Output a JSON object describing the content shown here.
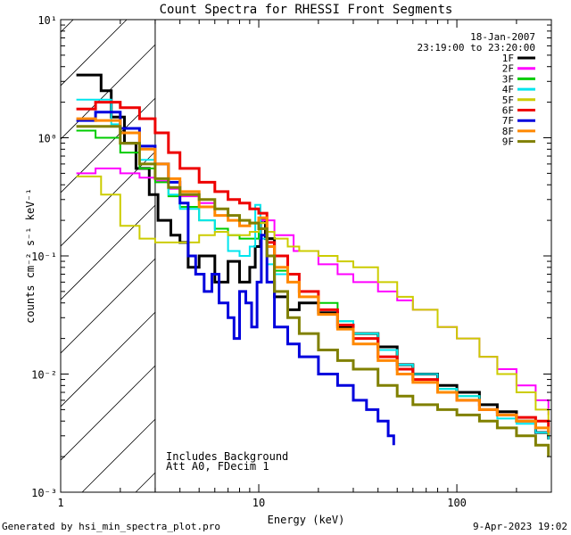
{
  "chart_data": {
    "type": "line",
    "title": "Count Spectra for RHESSI Front Segments",
    "xlabel": "Energy (keV)",
    "ylabel": "counts cm⁻² s⁻¹ keV⁻¹",
    "xscale": "log",
    "yscale": "log",
    "xlim": [
      1,
      300
    ],
    "ylim": [
      0.001,
      10
    ],
    "x_ticks": [
      {
        "value": 1,
        "label": "1"
      },
      {
        "value": 10,
        "label": "10"
      },
      {
        "value": 100,
        "label": "100"
      }
    ],
    "y_ticks": [
      {
        "value": 0.001,
        "label": "10⁻³"
      },
      {
        "value": 0.01,
        "label": "10⁻²"
      },
      {
        "value": 0.1,
        "label": "10⁻¹"
      },
      {
        "value": 1,
        "label": "10⁰"
      },
      {
        "value": 10,
        "label": "10¹"
      }
    ],
    "grid": false,
    "legend_position": "top-right",
    "date": "18-Jan-2007",
    "time_range": "23:19:00 to 23:20:00",
    "hatched_region_max_keV": 3,
    "annotations": [
      "Includes Background",
      "Att A0, FDecim 1"
    ],
    "series": [
      {
        "name": "1F",
        "color": "#000000",
        "width": 3,
        "x": [
          1.2,
          1.4,
          1.6,
          1.8,
          2.1,
          2.4,
          2.8,
          3.1,
          3.6,
          4.0,
          4.4,
          5.0,
          6.0,
          7.0,
          8.0,
          9.0,
          9.6,
          10.2,
          10.8,
          12,
          14,
          16,
          20,
          25,
          30,
          40,
          50,
          60,
          80,
          100,
          130,
          160,
          200,
          250,
          290
        ],
        "y": [
          3.4,
          3.4,
          2.5,
          1.5,
          0.9,
          0.55,
          0.33,
          0.2,
          0.15,
          0.13,
          0.08,
          0.1,
          0.06,
          0.09,
          0.06,
          0.08,
          0.12,
          0.2,
          0.14,
          0.045,
          0.035,
          0.04,
          0.033,
          0.025,
          0.022,
          0.017,
          0.012,
          0.01,
          0.008,
          0.007,
          0.0055,
          0.0048,
          0.004,
          0.0032,
          0.0028
        ]
      },
      {
        "name": "2F",
        "color": "#ff00ff",
        "width": 2,
        "x": [
          1.2,
          1.5,
          2.0,
          2.5,
          3.0,
          3.5,
          4.0,
          5.0,
          6.0,
          7.0,
          8.0,
          9.0,
          10.0,
          12,
          15,
          20,
          25,
          30,
          40,
          50,
          60,
          80,
          100,
          130,
          160,
          200,
          250,
          290
        ],
        "y": [
          0.5,
          0.55,
          0.5,
          0.46,
          0.43,
          0.37,
          0.32,
          0.28,
          0.22,
          0.2,
          0.2,
          0.19,
          0.2,
          0.15,
          0.11,
          0.085,
          0.07,
          0.06,
          0.05,
          0.042,
          0.035,
          0.025,
          0.02,
          0.014,
          0.011,
          0.008,
          0.006,
          0.0045
        ]
      },
      {
        "name": "3F",
        "color": "#00cc00",
        "width": 2,
        "x": [
          1.2,
          1.5,
          2.0,
          2.5,
          3.0,
          3.5,
          4.0,
          5.0,
          6.0,
          7.0,
          8.0,
          9.0,
          10.0,
          11,
          12,
          14,
          16,
          20,
          25,
          30,
          40,
          50,
          60,
          80,
          100,
          130,
          160,
          200,
          250,
          290
        ],
        "y": [
          1.15,
          1.0,
          0.75,
          0.55,
          0.42,
          0.32,
          0.26,
          0.2,
          0.17,
          0.15,
          0.14,
          0.14,
          0.19,
          0.1,
          0.075,
          0.06,
          0.05,
          0.04,
          0.028,
          0.022,
          0.016,
          0.012,
          0.01,
          0.0075,
          0.0065,
          0.005,
          0.0045,
          0.004,
          0.0035,
          0.003
        ]
      },
      {
        "name": "4F",
        "color": "#00e5ee",
        "width": 2,
        "x": [
          1.2,
          1.5,
          1.8,
          2.0,
          2.5,
          3.0,
          3.5,
          4.0,
          5.0,
          6.0,
          7.0,
          8.0,
          9.0,
          9.6,
          10.2,
          11,
          12,
          14,
          16,
          20,
          25,
          30,
          40,
          50,
          60,
          80,
          100,
          130,
          160,
          200,
          250,
          290
        ],
        "y": [
          2.1,
          2.1,
          1.3,
          0.9,
          0.65,
          0.45,
          0.33,
          0.25,
          0.2,
          0.16,
          0.11,
          0.1,
          0.12,
          0.27,
          0.14,
          0.085,
          0.07,
          0.06,
          0.045,
          0.035,
          0.028,
          0.022,
          0.016,
          0.012,
          0.01,
          0.0075,
          0.0065,
          0.005,
          0.0042,
          0.0038,
          0.0032,
          0.0028
        ]
      },
      {
        "name": "5F",
        "color": "#cccc00",
        "width": 2,
        "x": [
          1.2,
          1.35,
          1.6,
          2.0,
          2.5,
          3.0,
          3.5,
          4.0,
          5.0,
          6.0,
          7.0,
          8.0,
          9.0,
          10.0,
          11,
          12,
          14,
          16,
          20,
          25,
          30,
          40,
          50,
          60,
          80,
          100,
          130,
          160,
          200,
          250,
          290
        ],
        "y": [
          0.47,
          0.47,
          0.33,
          0.18,
          0.14,
          0.13,
          0.13,
          0.13,
          0.15,
          0.16,
          0.15,
          0.15,
          0.16,
          0.19,
          0.16,
          0.14,
          0.12,
          0.11,
          0.1,
          0.09,
          0.08,
          0.06,
          0.045,
          0.035,
          0.025,
          0.02,
          0.014,
          0.01,
          0.007,
          0.005,
          0.003
        ]
      },
      {
        "name": "6F",
        "color": "#ee0000",
        "width": 3,
        "x": [
          1.2,
          1.5,
          2.0,
          2.5,
          3.0,
          3.5,
          4.0,
          5.0,
          6.0,
          7.0,
          8.0,
          9.0,
          10.0,
          11,
          12,
          14,
          16,
          20,
          25,
          30,
          40,
          50,
          60,
          80,
          100,
          130,
          160,
          200,
          250,
          290
        ],
        "y": [
          1.75,
          2.0,
          1.8,
          1.45,
          1.1,
          0.75,
          0.55,
          0.42,
          0.35,
          0.3,
          0.28,
          0.25,
          0.23,
          0.13,
          0.1,
          0.07,
          0.05,
          0.035,
          0.026,
          0.02,
          0.014,
          0.011,
          0.009,
          0.007,
          0.006,
          0.005,
          0.0045,
          0.0043,
          0.004,
          0.0032
        ]
      },
      {
        "name": "7F",
        "color": "#0000dd",
        "width": 3,
        "x": [
          1.2,
          1.5,
          2.0,
          2.5,
          3.0,
          3.5,
          4.0,
          4.4,
          4.8,
          5.3,
          5.8,
          6.3,
          7.0,
          7.5,
          8.0,
          8.6,
          9.2,
          9.8,
          10.3,
          11,
          12,
          14,
          16,
          20,
          25,
          30,
          35,
          40,
          45,
          48
        ],
        "y": [
          1.4,
          1.65,
          1.2,
          0.85,
          0.6,
          0.42,
          0.28,
          0.1,
          0.07,
          0.05,
          0.07,
          0.04,
          0.03,
          0.02,
          0.05,
          0.04,
          0.025,
          0.06,
          0.15,
          0.06,
          0.025,
          0.018,
          0.014,
          0.01,
          0.008,
          0.006,
          0.005,
          0.004,
          0.003,
          0.0025
        ]
      },
      {
        "name": "8F",
        "color": "#ff8800",
        "width": 3,
        "x": [
          1.2,
          1.5,
          2.0,
          2.5,
          3.0,
          3.5,
          4.0,
          5.0,
          6.0,
          7.0,
          8.0,
          9.0,
          10.0,
          11,
          12,
          14,
          16,
          20,
          25,
          30,
          40,
          50,
          60,
          80,
          100,
          130,
          160,
          200,
          250,
          290
        ],
        "y": [
          1.45,
          1.4,
          1.1,
          0.8,
          0.6,
          0.45,
          0.35,
          0.26,
          0.22,
          0.2,
          0.18,
          0.19,
          0.21,
          0.12,
          0.08,
          0.06,
          0.045,
          0.032,
          0.024,
          0.018,
          0.013,
          0.01,
          0.0085,
          0.007,
          0.006,
          0.005,
          0.0045,
          0.004,
          0.0035,
          0.0032
        ]
      },
      {
        "name": "9F",
        "color": "#808000",
        "width": 3,
        "x": [
          1.2,
          1.5,
          2.0,
          2.5,
          3.0,
          3.5,
          4.0,
          5.0,
          6.0,
          7.0,
          8.0,
          9.0,
          10.0,
          11,
          12,
          14,
          16,
          20,
          25,
          30,
          40,
          50,
          60,
          80,
          100,
          130,
          160,
          200,
          250,
          290
        ],
        "y": [
          1.25,
          1.25,
          0.9,
          0.6,
          0.45,
          0.38,
          0.33,
          0.3,
          0.25,
          0.22,
          0.2,
          0.19,
          0.17,
          0.1,
          0.05,
          0.03,
          0.022,
          0.016,
          0.013,
          0.011,
          0.008,
          0.0065,
          0.0055,
          0.005,
          0.0045,
          0.004,
          0.0035,
          0.003,
          0.0025,
          0.002
        ]
      }
    ]
  },
  "footer": {
    "generated_by": "Generated by hsi_min_spectra_plot.pro",
    "timestamp": "9-Apr-2023 19:02"
  }
}
